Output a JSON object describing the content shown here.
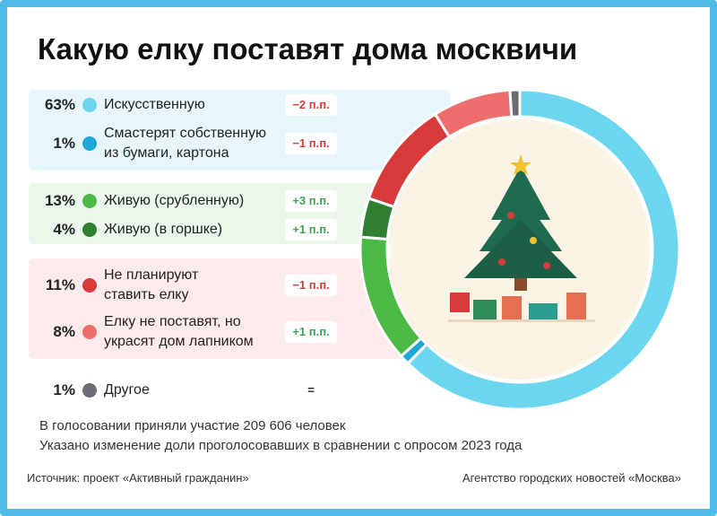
{
  "chart_data": {
    "type": "donut",
    "title": "Какую елку поставят дома москвичи",
    "categories": [
      "Искусственную",
      "Смастерят собственную\nиз бумаги, картона",
      "Живую (срубленную)",
      "Живую (в горшке)",
      "Не планируют\nставить елку",
      "Елку не поставят, но\nукрасят дом лапником",
      "Другое"
    ],
    "values": [
      63,
      1,
      13,
      4,
      11,
      8,
      1
    ],
    "value_labels": [
      "63%",
      "1%",
      "13%",
      "4%",
      "11%",
      "8%",
      "1%"
    ],
    "colors": [
      "#6dd6ef",
      "#1fa6d8",
      "#4cb944",
      "#2e8030",
      "#d83a3a",
      "#ef6d6d",
      "#6a6e74"
    ],
    "changes": [
      "−2 п.п.",
      "−1 п.п.",
      "+3 п.п.",
      "+1 п.п.",
      "−1 п.п.",
      "+1 п.п.",
      "="
    ]
  },
  "footnotes": [
    "В голосовании приняли участие 209 606 человек",
    "Указано изменение доли проголосовавших в сравнении с опросом 2023 года"
  ],
  "source": "Источник: проект «Активный гражданин»",
  "agency": "Агентство городских новостей «Москва»"
}
